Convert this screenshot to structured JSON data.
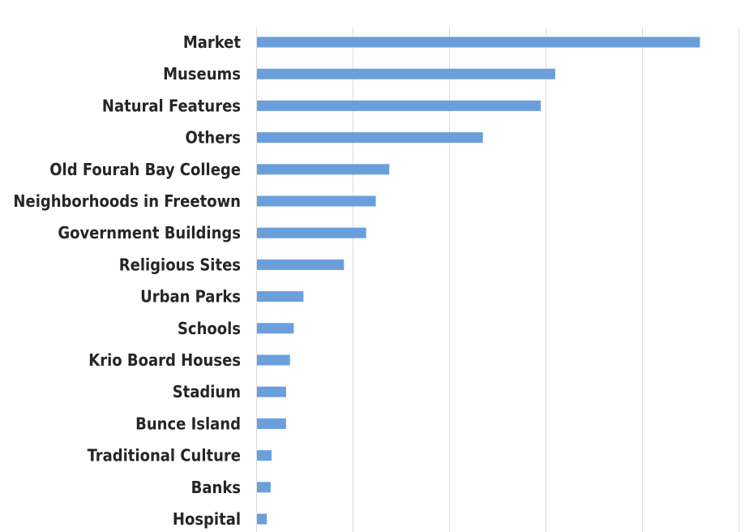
{
  "chart_data": {
    "type": "bar",
    "orientation": "horizontal",
    "categories": [
      "Market",
      "Museums",
      "Natural Features",
      "Others",
      "Old Fourah Bay College",
      "Neighborhoods in Freetown",
      "Government Buildings",
      "Religious Sites",
      "Urban Parks",
      "Schools",
      "Krio Board Houses",
      "Stadium",
      "Bunce Island",
      "Traditional Culture",
      "Banks",
      "Hospital"
    ],
    "values": [
      46,
      31,
      29.5,
      23.5,
      13.8,
      12.4,
      11.4,
      9.1,
      4.9,
      3.9,
      3.5,
      3.1,
      3.1,
      1.6,
      1.5,
      1.1
    ],
    "xlim": [
      0,
      50
    ],
    "grid": true,
    "bar_color": "#6a9fdc",
    "gridline_color": "#dcdcdc",
    "label_color": "#262626"
  }
}
